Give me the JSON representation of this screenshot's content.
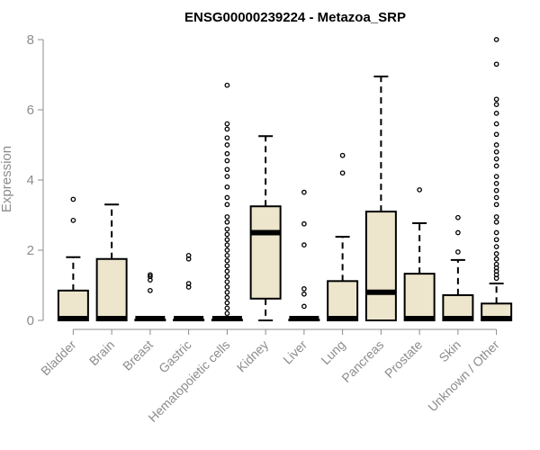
{
  "chart_data": {
    "type": "boxplot",
    "title": "ENSG00000239224 - Metazoa_SRP",
    "xlabel": "",
    "ylabel": "Expression",
    "ylim": [
      0,
      8
    ],
    "yticks": [
      0,
      2,
      4,
      6,
      8
    ],
    "colors": {
      "box_fill": "#ede5cc",
      "axis": "#8c8c8c"
    },
    "categories": [
      "Bladder",
      "Brain",
      "Breast",
      "Gastric",
      "Hematopoietic cells",
      "Kidney",
      "Liver",
      "Lung",
      "Pancreas",
      "Prostate",
      "Skin",
      "Unknown / Other"
    ],
    "boxes": [
      {
        "min": 0,
        "q1": 0,
        "median": 0.02,
        "q3": 0.85,
        "max": 1.8,
        "outliers": [
          2.85,
          3.45
        ]
      },
      {
        "min": 0,
        "q1": 0,
        "median": 0.02,
        "q3": 1.75,
        "max": 3.3,
        "outliers": []
      },
      {
        "min": 0,
        "q1": 0,
        "median": 0.02,
        "q3": 0.02,
        "max": 0.02,
        "outliers": [
          0.85,
          1.15,
          1.25,
          1.3
        ]
      },
      {
        "min": 0,
        "q1": 0,
        "median": 0.02,
        "q3": 0.02,
        "max": 0.02,
        "outliers": [
          0.95,
          1.05,
          1.75,
          1.85
        ]
      },
      {
        "min": 0,
        "q1": 0,
        "median": 0.02,
        "q3": 0.02,
        "max": 0.02,
        "outliers": [
          0.2,
          0.35,
          0.5,
          0.65,
          0.8,
          0.95,
          1.1,
          1.25,
          1.4,
          1.55,
          1.7,
          1.85,
          2.0,
          2.15,
          2.3,
          2.45,
          2.6,
          2.8,
          2.95,
          3.3,
          3.5,
          3.8,
          4.1,
          4.3,
          4.55,
          4.75,
          5.0,
          5.2,
          5.45,
          5.6,
          6.7
        ]
      },
      {
        "min": 0,
        "q1": 0.62,
        "median": 2.5,
        "q3": 3.25,
        "max": 5.25,
        "outliers": []
      },
      {
        "min": 0,
        "q1": 0,
        "median": 0.02,
        "q3": 0.02,
        "max": 0.02,
        "outliers": [
          0.4,
          0.75,
          0.9,
          2.15,
          2.75,
          3.65
        ]
      },
      {
        "min": 0,
        "q1": 0,
        "median": 0.02,
        "q3": 1.12,
        "max": 2.38,
        "outliers": [
          4.2,
          4.7
        ]
      },
      {
        "min": 0,
        "q1": 0,
        "median": 0.8,
        "q3": 3.1,
        "max": 6.95,
        "outliers": []
      },
      {
        "min": 0,
        "q1": 0,
        "median": 0.02,
        "q3": 1.33,
        "max": 2.77,
        "outliers": [
          3.72
        ]
      },
      {
        "min": 0,
        "q1": 0,
        "median": 0.02,
        "q3": 0.72,
        "max": 1.72,
        "outliers": [
          1.95,
          2.5,
          2.93
        ]
      },
      {
        "min": 0,
        "q1": 0,
        "median": 0.02,
        "q3": 0.48,
        "max": 1.05,
        "outliers": [
          1.2,
          1.3,
          1.4,
          1.5,
          1.6,
          1.75,
          1.9,
          2.1,
          2.3,
          2.5,
          2.8,
          2.95,
          3.3,
          3.5,
          3.7,
          3.9,
          4.1,
          4.4,
          4.6,
          4.8,
          5.0,
          5.3,
          5.6,
          5.9,
          6.15,
          6.3,
          7.3,
          8.0
        ]
      }
    ]
  }
}
